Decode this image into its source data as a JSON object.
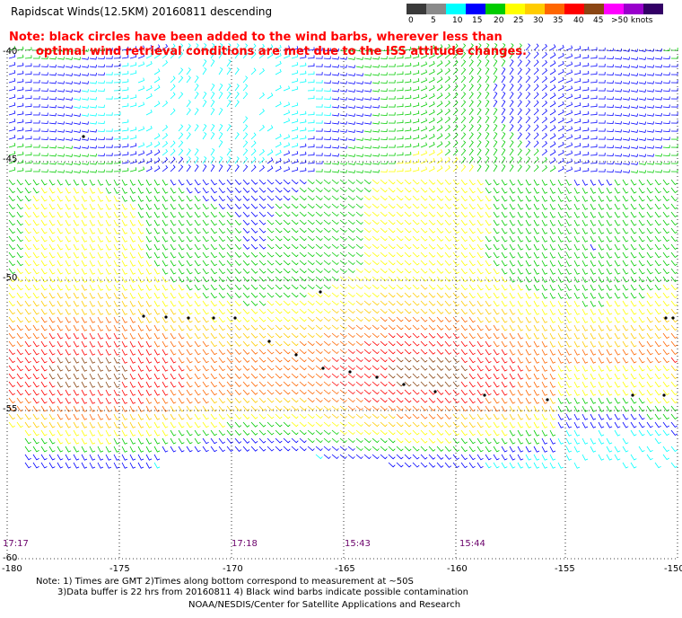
{
  "header": {
    "title": "Rapidscat Winds(12.5KM) 20160811 descending",
    "note_line1": "Note: black circles have been added to the wind barbs, wherever less than",
    "note_line2": "optimal wind retrieval conditions are met due to the ISS attitude changes."
  },
  "legend": {
    "colors": [
      "#3a3a3a",
      "#8a8a8a",
      "#00ffff",
      "#0000ff",
      "#00cc00",
      "#ffff00",
      "#ffcc00",
      "#ff6600",
      "#ff0000",
      "#8b4513",
      "#ff00ff",
      "#9900cc",
      "#330066"
    ],
    "labels": [
      "0",
      "5",
      "10",
      "15",
      "20",
      "25",
      "30",
      "35",
      "40",
      "45",
      ">50 knots"
    ]
  },
  "map": {
    "lon_labels": [
      "-180",
      "-175",
      "-170",
      "-165",
      "-160",
      "-155",
      "-150"
    ],
    "lat_labels": [
      "-40",
      "-45",
      "-50",
      "-55",
      "-60"
    ],
    "time_labels": [
      "17:17",
      "17:18",
      "15:43",
      "15:44"
    ]
  },
  "footer": {
    "line1": "Note: 1) Times are GMT 2)Times along bottom correspond to measurement at ~50S",
    "line2": "3)Data buffer is 22 hrs from 20160811 4) Black wind barbs indicate possible contamination",
    "line3": "NOAA/NESDIS/Center for Satellite Applications and Research"
  }
}
